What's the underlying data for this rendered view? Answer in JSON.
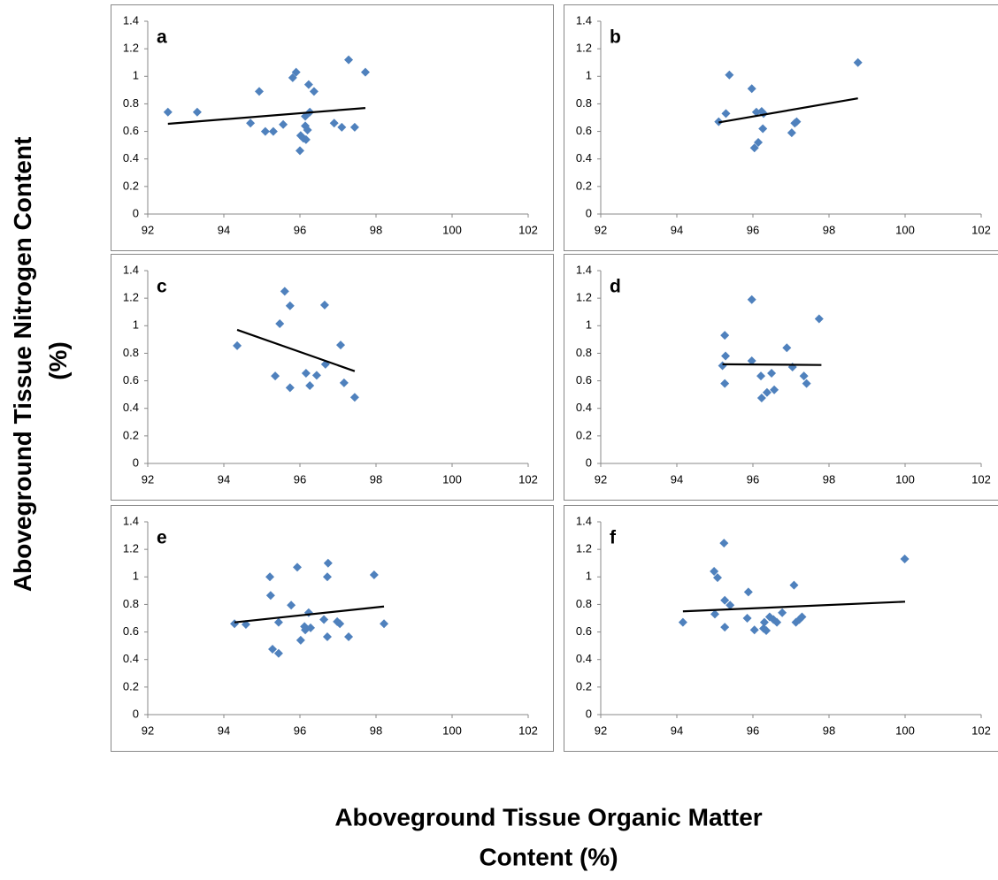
{
  "ylabel": [
    "Aboveground Tissue Nitrogen Content",
    "(%)"
  ],
  "xlabel": [
    "Aboveground Tissue Organic Matter",
    "Content (%)"
  ],
  "chart_data": [
    {
      "type": "scatter",
      "label": "a",
      "color": "#4f81bd",
      "x": [
        92.53,
        93.3,
        94.7,
        94.93,
        95.09,
        95.3,
        95.56,
        95.81,
        95.9,
        96.0,
        96.02,
        96.09,
        96.16,
        96.14,
        96.14,
        96.2,
        96.23,
        96.26,
        96.37,
        96.9,
        97.1,
        97.28,
        97.44,
        97.72
      ],
      "values": [
        0.74,
        0.74,
        0.66,
        0.89,
        0.6,
        0.6,
        0.65,
        0.99,
        1.03,
        0.46,
        0.57,
        0.55,
        0.54,
        0.71,
        0.64,
        0.61,
        0.94,
        0.74,
        0.89,
        0.66,
        0.63,
        1.12,
        0.63,
        1.03
      ],
      "trendline": {
        "x": [
          92.53,
          97.72
        ],
        "y": [
          0.655,
          0.77
        ]
      },
      "xlim": [
        92,
        102
      ],
      "ylim": [
        0,
        1.4
      ],
      "xticks": [
        92,
        94,
        96,
        98,
        100,
        102
      ],
      "yticks": [
        0,
        0.2,
        0.4,
        0.6,
        0.8,
        1,
        1.2,
        1.4
      ]
    },
    {
      "type": "scatter",
      "label": "b",
      "color": "#4f81bd",
      "x": [
        95.1,
        95.29,
        95.38,
        95.97,
        96.04,
        96.14,
        96.09,
        96.23,
        96.26,
        96.28,
        97.02,
        97.1,
        97.15,
        98.76
      ],
      "values": [
        0.67,
        0.73,
        1.01,
        0.91,
        0.48,
        0.52,
        0.74,
        0.745,
        0.62,
        0.73,
        0.59,
        0.66,
        0.67,
        1.1
      ],
      "trendline": {
        "x": [
          95.1,
          98.76
        ],
        "y": [
          0.665,
          0.84
        ]
      },
      "xlim": [
        92,
        102
      ],
      "ylim": [
        0,
        1.4
      ],
      "xticks": [
        92,
        94,
        96,
        98,
        100,
        102
      ],
      "yticks": [
        0,
        0.2,
        0.4,
        0.6,
        0.8,
        1,
        1.2,
        1.4
      ]
    },
    {
      "type": "scatter",
      "label": "c",
      "color": "#4f81bd",
      "x": [
        94.35,
        95.35,
        95.47,
        95.6,
        95.74,
        95.74,
        96.16,
        96.26,
        96.44,
        96.65,
        96.67,
        97.07,
        97.16,
        97.44
      ],
      "values": [
        0.855,
        0.635,
        1.015,
        1.25,
        1.145,
        0.55,
        0.655,
        0.565,
        0.64,
        1.15,
        0.72,
        0.86,
        0.585,
        0.48
      ],
      "trendline": {
        "x": [
          94.35,
          97.44
        ],
        "y": [
          0.97,
          0.67
        ]
      },
      "xlim": [
        92,
        102
      ],
      "ylim": [
        0,
        1.4
      ],
      "xticks": [
        92,
        94,
        96,
        98,
        100,
        102
      ],
      "yticks": [
        0,
        0.2,
        0.4,
        0.6,
        0.8,
        1,
        1.2,
        1.4
      ]
    },
    {
      "type": "scatter",
      "label": "d",
      "color": "#4f81bd",
      "x": [
        95.26,
        95.28,
        95.2,
        95.26,
        95.97,
        95.97,
        96.21,
        96.23,
        96.37,
        96.49,
        96.56,
        96.89,
        97.04,
        97.34,
        97.41,
        97.74
      ],
      "values": [
        0.93,
        0.78,
        0.71,
        0.58,
        1.19,
        0.745,
        0.635,
        0.475,
        0.515,
        0.655,
        0.535,
        0.84,
        0.7,
        0.635,
        0.58,
        1.05
      ],
      "trendline": {
        "x": [
          95.2,
          97.8
        ],
        "y": [
          0.72,
          0.715
        ]
      },
      "xlim": [
        92,
        102
      ],
      "ylim": [
        0,
        1.4
      ],
      "xticks": [
        92,
        94,
        96,
        98,
        100,
        102
      ],
      "yticks": [
        0,
        0.2,
        0.4,
        0.6,
        0.8,
        1,
        1.2,
        1.4
      ]
    },
    {
      "type": "scatter",
      "label": "e",
      "color": "#4f81bd",
      "x": [
        94.28,
        94.58,
        95.21,
        95.23,
        95.28,
        95.44,
        95.44,
        95.77,
        95.93,
        96.02,
        96.12,
        96.14,
        96.23,
        96.28,
        96.63,
        96.72,
        96.74,
        96.72,
        96.98,
        97.05,
        97.28,
        97.95,
        98.21
      ],
      "values": [
        0.66,
        0.655,
        1.0,
        0.865,
        0.475,
        0.67,
        0.445,
        0.795,
        1.07,
        0.54,
        0.64,
        0.615,
        0.74,
        0.63,
        0.69,
        1.0,
        1.1,
        0.565,
        0.675,
        0.66,
        0.565,
        1.015,
        0.66
      ],
      "trendline": {
        "x": [
          94.28,
          98.21
        ],
        "y": [
          0.67,
          0.785
        ]
      },
      "xlim": [
        92,
        102
      ],
      "ylim": [
        0,
        1.4
      ],
      "xticks": [
        92,
        94,
        96,
        98,
        100,
        102
      ],
      "yticks": [
        0,
        0.2,
        0.4,
        0.6,
        0.8,
        1,
        1.2,
        1.4
      ]
    },
    {
      "type": "scatter",
      "label": "f",
      "color": "#4f81bd",
      "x": [
        94.16,
        94.98,
        95.07,
        95.0,
        95.24,
        95.26,
        95.26,
        95.4,
        95.88,
        95.85,
        96.04,
        96.3,
        96.28,
        96.35,
        96.44,
        96.54,
        96.63,
        96.77,
        97.08,
        97.13,
        97.22,
        97.29,
        99.99
      ],
      "values": [
        0.67,
        1.04,
        0.995,
        0.73,
        1.245,
        0.83,
        0.635,
        0.795,
        0.89,
        0.7,
        0.615,
        0.67,
        0.625,
        0.61,
        0.71,
        0.69,
        0.67,
        0.74,
        0.94,
        0.67,
        0.69,
        0.71,
        1.13
      ],
      "trendline": {
        "x": [
          94.16,
          100.0
        ],
        "y": [
          0.75,
          0.82
        ]
      },
      "xlim": [
        92,
        102
      ],
      "ylim": [
        0,
        1.4
      ],
      "xticks": [
        92,
        94,
        96,
        98,
        100,
        102
      ],
      "yticks": [
        0,
        0.2,
        0.4,
        0.6,
        0.8,
        1,
        1.2,
        1.4
      ]
    }
  ]
}
